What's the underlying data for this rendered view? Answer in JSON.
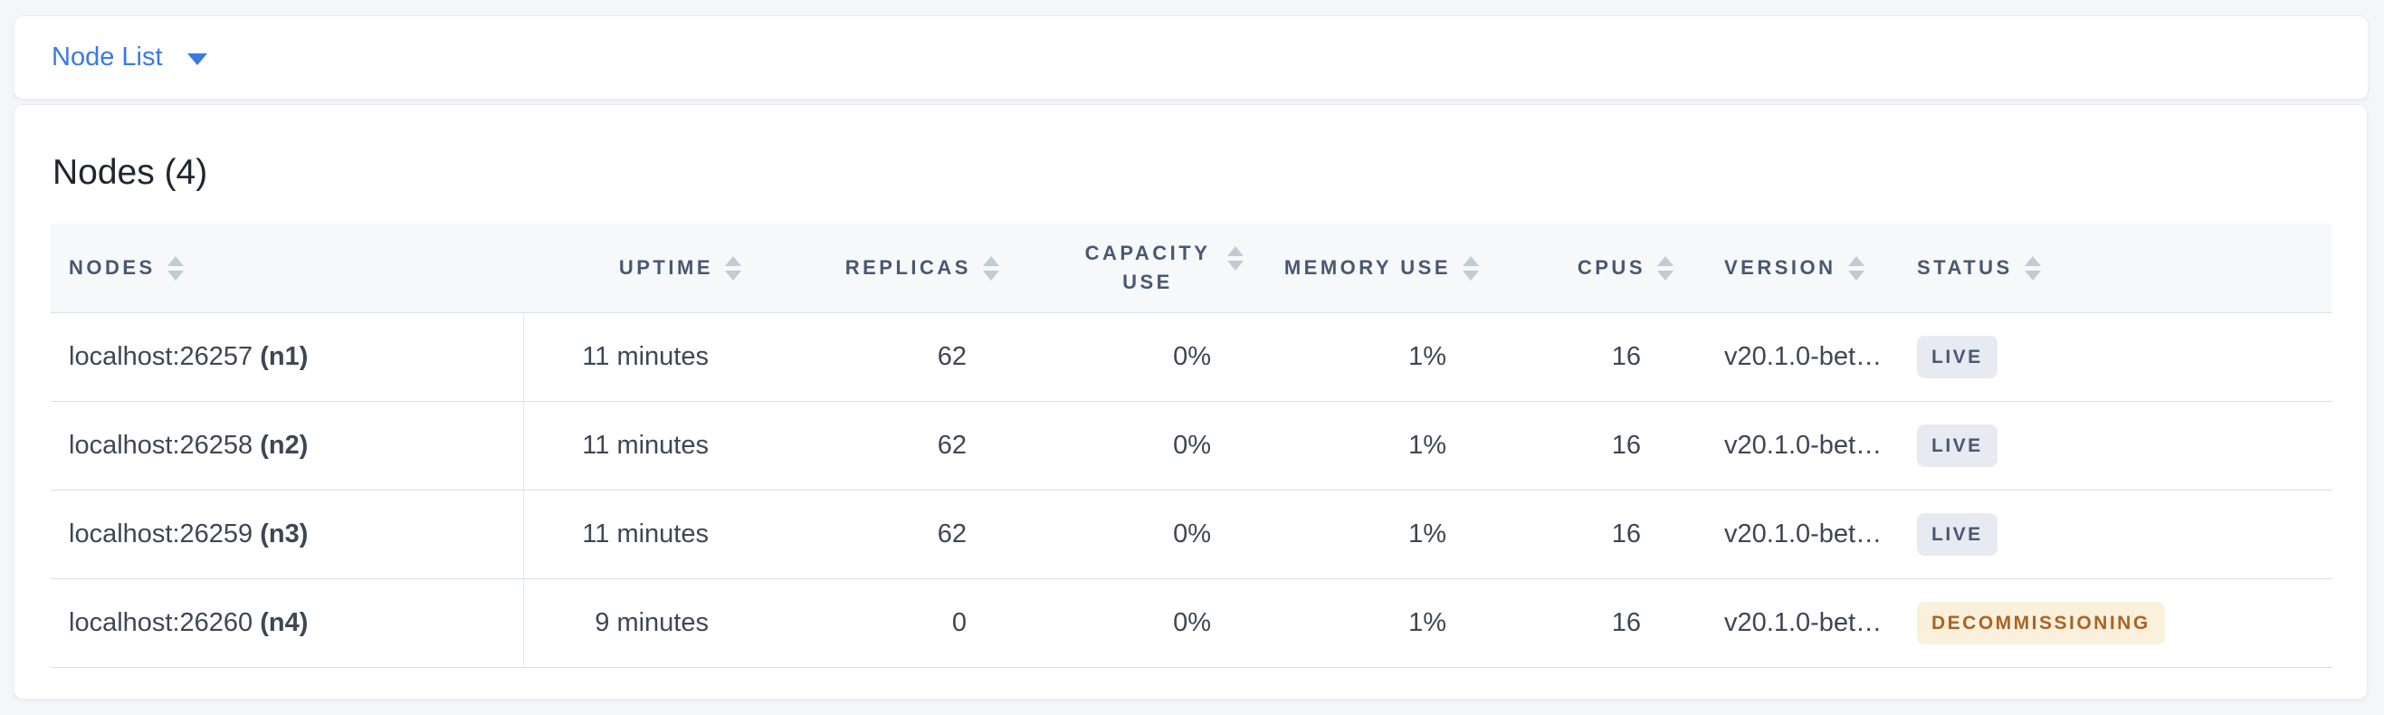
{
  "colors": {
    "accent_blue": "#3b78e3",
    "page_bg": "#f4f6fa",
    "panel_bg": "#ffffff",
    "table_header_bg": "#f7f8fa",
    "header_text": "#475872",
    "body_text": "#3d4754",
    "title_text": "#20262e",
    "row_border": "#dadfe9",
    "column_divider": "#e4e8ef",
    "sort_icon": "#c4cad4",
    "badge_live_bg": "#e7eaf0",
    "badge_live_text": "#475872",
    "badge_warn_bg": "#fbf0dc",
    "badge_warn_text": "#aa6325"
  },
  "topbar": {
    "dropdown_label": "Node List"
  },
  "panel": {
    "title": "Nodes (4)"
  },
  "table": {
    "columns": [
      {
        "key": "node",
        "label": "Nodes",
        "align": "left",
        "sortable": true
      },
      {
        "key": "uptime",
        "label": "Uptime",
        "align": "right",
        "sortable": true
      },
      {
        "key": "replicas",
        "label": "Replicas",
        "align": "right",
        "sortable": true
      },
      {
        "key": "capacity_use",
        "label": "Capacity Use",
        "align": "right",
        "sortable": true,
        "wrap": true
      },
      {
        "key": "memory_use",
        "label": "Memory Use",
        "align": "right",
        "sortable": true
      },
      {
        "key": "cpus",
        "label": "CPUs",
        "align": "right",
        "sortable": true
      },
      {
        "key": "version",
        "label": "Version",
        "align": "left",
        "sortable": true
      },
      {
        "key": "status",
        "label": "Status",
        "align": "left",
        "sortable": true
      }
    ],
    "rows": [
      {
        "node_address": "localhost:26257",
        "node_id": "(n1)",
        "uptime": "11 minutes",
        "replicas": "62",
        "capacity_use": "0%",
        "memory_use": "1%",
        "cpus": "16",
        "version": "v20.1.0-bet…",
        "status": "LIVE",
        "status_variant": "live"
      },
      {
        "node_address": "localhost:26258",
        "node_id": "(n2)",
        "uptime": "11 minutes",
        "replicas": "62",
        "capacity_use": "0%",
        "memory_use": "1%",
        "cpus": "16",
        "version": "v20.1.0-bet…",
        "status": "LIVE",
        "status_variant": "live"
      },
      {
        "node_address": "localhost:26259",
        "node_id": "(n3)",
        "uptime": "11 minutes",
        "replicas": "62",
        "capacity_use": "0%",
        "memory_use": "1%",
        "cpus": "16",
        "version": "v20.1.0-bet…",
        "status": "LIVE",
        "status_variant": "live"
      },
      {
        "node_address": "localhost:26260",
        "node_id": "(n4)",
        "uptime": "9 minutes",
        "replicas": "0",
        "capacity_use": "0%",
        "memory_use": "1%",
        "cpus": "16",
        "version": "v20.1.0-bet…",
        "status": "DECOMMISSIONING",
        "status_variant": "decommissioning"
      }
    ]
  }
}
